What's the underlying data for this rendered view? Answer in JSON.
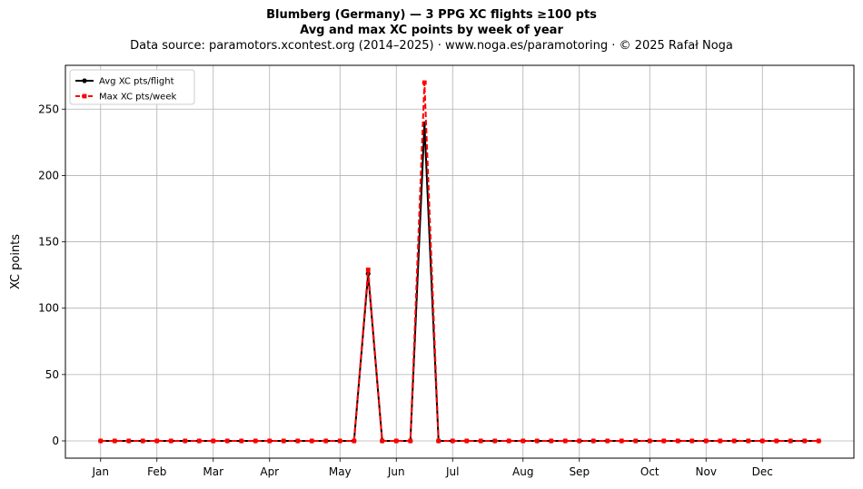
{
  "chart_data": {
    "type": "line",
    "title": "Blumberg (Germany)  —  3 PPG XC flights ≥100 pts",
    "subtitle": "Avg and max XC points by week of year",
    "source_line": "Data source: paramotors.xcontest.org (2014–2025)  ·  www.noga.es/paramotoring  ·  © 2025 Rafał Noga",
    "xlabel": "",
    "ylabel": "XC points",
    "xlim": [
      -1.5,
      54.5
    ],
    "ylim": [
      -13,
      283
    ],
    "yticks": [
      0,
      50,
      100,
      150,
      200,
      250
    ],
    "month_ticks": [
      {
        "label": "Jan",
        "week": 1
      },
      {
        "label": "Feb",
        "week": 5
      },
      {
        "label": "Mar",
        "week": 9
      },
      {
        "label": "Apr",
        "week": 13
      },
      {
        "label": "May",
        "week": 18
      },
      {
        "label": "Jun",
        "week": 22
      },
      {
        "label": "Jul",
        "week": 26
      },
      {
        "label": "Aug",
        "week": 31
      },
      {
        "label": "Sep",
        "week": 35
      },
      {
        "label": "Oct",
        "week": 40
      },
      {
        "label": "Nov",
        "week": 44
      },
      {
        "label": "Dec",
        "week": 48
      }
    ],
    "grid": true,
    "legend_position": "top-left",
    "x": [
      1,
      2,
      3,
      4,
      5,
      6,
      7,
      8,
      9,
      10,
      11,
      12,
      13,
      14,
      15,
      16,
      17,
      18,
      19,
      20,
      21,
      22,
      23,
      24,
      25,
      26,
      27,
      28,
      29,
      30,
      31,
      32,
      33,
      34,
      35,
      36,
      37,
      38,
      39,
      40,
      41,
      42,
      43,
      44,
      45,
      46,
      47,
      48,
      49,
      50,
      51,
      52
    ],
    "series": [
      {
        "name": "Avg XC pts/flight",
        "color": "#000000",
        "style": "solid",
        "marker": "circle",
        "values": [
          0,
          0,
          0,
          0,
          0,
          0,
          0,
          0,
          0,
          0,
          0,
          0,
          0,
          0,
          0,
          0,
          0,
          0,
          0,
          126,
          0,
          0,
          0,
          239,
          0,
          0,
          0,
          0,
          0,
          0,
          0,
          0,
          0,
          0,
          0,
          0,
          0,
          0,
          0,
          0,
          0,
          0,
          0,
          0,
          0,
          0,
          0,
          0,
          0,
          0,
          0,
          0
        ]
      },
      {
        "name": "Max XC pts/week",
        "color": "#ff0000",
        "style": "dashed",
        "marker": "square",
        "values": [
          0,
          0,
          0,
          0,
          0,
          0,
          0,
          0,
          0,
          0,
          0,
          0,
          0,
          0,
          0,
          0,
          0,
          0,
          0,
          129,
          0,
          0,
          0,
          270,
          0,
          0,
          0,
          0,
          0,
          0,
          0,
          0,
          0,
          0,
          0,
          0,
          0,
          0,
          0,
          0,
          0,
          0,
          0,
          0,
          0,
          0,
          0,
          0,
          0,
          0,
          0,
          0
        ]
      }
    ]
  }
}
